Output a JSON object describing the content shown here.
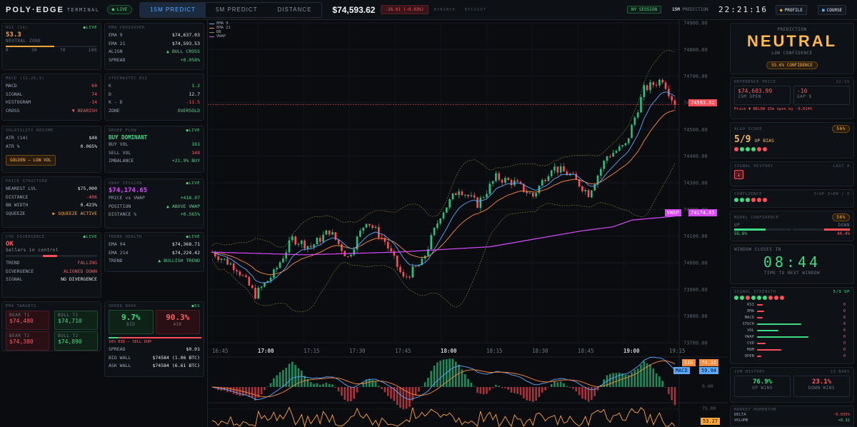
{
  "topbar": {
    "brand": "POLY·EDGE",
    "brand_sub": "TERMINAL",
    "live": "● LIVE",
    "tabs": [
      {
        "label": "15M PREDICT",
        "active": true
      },
      {
        "label": "5M PREDICT",
        "active": false
      },
      {
        "label": "DISTANCE",
        "active": false
      }
    ],
    "price": "$74,593.62",
    "change": "-26.01 (-0.03%)",
    "feed": "BINANCE · BTCUSDT",
    "session": "NY SESSION",
    "prediction_label_a": "15M",
    "prediction_label_b": "PREDICTION",
    "clock": "22:21:16",
    "profile": "PROFILE",
    "course": "COURSE"
  },
  "rsi": {
    "title": "RSI (14)",
    "live": "●LIVE",
    "value": "53.3",
    "zone": "NEUTRAL ZONE",
    "fill": 0.533,
    "ticks": [
      "0",
      "30",
      "70",
      "100"
    ]
  },
  "ema_cross": {
    "title": "EMA CROSSOVER",
    "rows": [
      {
        "k": "EMA 9",
        "v": "$74,637.03"
      },
      {
        "k": "EMA 21",
        "v": "$74,593.53"
      },
      {
        "k": "ALIGN",
        "v": "▲ BULL CROSS"
      },
      {
        "k": "SPREAD",
        "v": "+0.058%"
      }
    ]
  },
  "macd": {
    "title": "MACD (12,26,9)",
    "rows": [
      {
        "k": "MACD",
        "v": "60"
      },
      {
        "k": "SIGNAL",
        "v": "74"
      },
      {
        "k": "HISTOGRAM",
        "v": "-14"
      },
      {
        "k": "CROSS",
        "v": "▼ BEARISH"
      }
    ]
  },
  "stoch": {
    "title": "STOCHASTIC RSI",
    "rows": [
      {
        "k": "K",
        "v": "1.2"
      },
      {
        "k": "D",
        "v": "12.7"
      },
      {
        "k": "K - D",
        "v": "-11.5"
      },
      {
        "k": "ZONE",
        "v": "OVERSOLD"
      }
    ]
  },
  "volatility": {
    "title": "VOLATILITY REGIME",
    "rows": [
      {
        "k": "ATR (14)",
        "v": "$48"
      },
      {
        "k": "ATR %",
        "v": "0.065%"
      }
    ],
    "badge": "GOLDEN — LOW VOL"
  },
  "order_flow": {
    "title": "ORDER FLOW",
    "live": "●LIVE",
    "headline": "BUY DOMINANT",
    "rows": [
      {
        "k": "BUY VOL",
        "v": "181"
      },
      {
        "k": "SELL VOL",
        "v": "148"
      },
      {
        "k": "IMBALANCE",
        "v": "+21.9% BUY"
      }
    ]
  },
  "price_structure": {
    "title": "PRICE STRUCTURE",
    "rows": [
      {
        "k": "NEAREST LVL",
        "v": "$75,000"
      },
      {
        "k": "DISTANCE",
        "v": "-406"
      },
      {
        "k": "BB WIDTH",
        "v": "0.423%"
      },
      {
        "k": "SQUEEZE",
        "v": "▶ SQUEEZE ACTIVE"
      }
    ]
  },
  "vwap_session": {
    "title": "VWAP SESSION",
    "live": "●LIVE",
    "headline": "$74,174.65",
    "rows": [
      {
        "k": "PRICE vs VWAP",
        "v": "+418.97"
      },
      {
        "k": "POSITION",
        "v": "▲ ABOVE VWAP"
      },
      {
        "k": "DISTANCE %",
        "v": "+0.565%"
      }
    ]
  },
  "cvd": {
    "title": "CVD DIVERGENCE",
    "live": "●LIVE",
    "headline": "OK",
    "sub": "Sellers in control",
    "rows": [
      {
        "k": "TREND",
        "v": "FALLING"
      },
      {
        "k": "DIVERGENCE",
        "v": "ALIGNED DOWN"
      },
      {
        "k": "SIGNAL",
        "v": "NO DIVERGENCE"
      }
    ]
  },
  "trend_health": {
    "title": "TREND HEALTH",
    "live": "●LIVE",
    "rows": [
      {
        "k": "EMA 94",
        "v": "$74,368.71"
      },
      {
        "k": "EMA 214",
        "v": "$74,224.42"
      },
      {
        "k": "TREND",
        "v": "▲ BULLISH TREND"
      }
    ]
  },
  "ema_targets": {
    "title": "EMA TARGETS",
    "items": [
      {
        "k": "BEAR T1",
        "v": "$74,480",
        "side": "bear"
      },
      {
        "k": "BULL T1",
        "v": "$74,710",
        "side": "bull"
      },
      {
        "k": "BEAR T2",
        "v": "$74,380",
        "side": "bear"
      },
      {
        "k": "BULL T2",
        "v": "$74,890",
        "side": "bull"
      }
    ]
  },
  "order_book": {
    "title": "ORDER BOOK",
    "live": "●5S",
    "bid_pct": "9.7%",
    "bid_lbl": "BID",
    "ask_pct": "90.3%",
    "ask_lbl": "ASK",
    "bid_fraction": 0.097,
    "summary": "10% BID — SELL DOM",
    "rows": [
      {
        "k": "SPREAD",
        "v": "$0.01"
      },
      {
        "k": "BID WALL",
        "v": "$74584 (1.06 BTC)"
      },
      {
        "k": "ASK WALL",
        "v": "$74584 (6.61 BTC)"
      }
    ]
  },
  "chart": {
    "legend": [
      {
        "name": "EMA 9",
        "color": "#5aa9ff"
      },
      {
        "name": "EMA 21",
        "color": "#ff8a3a"
      },
      {
        "name": "BB",
        "color": "#8f8a3a"
      },
      {
        "name": "VWAP",
        "color": "#d84bff"
      }
    ],
    "price_label": "74593.62",
    "vwap_tag": "VWAP",
    "vwap_label": "74174.65",
    "y_ticks": [
      "74900.00",
      "74800.00",
      "74700.00",
      "74600.00",
      "74500.00",
      "74400.00",
      "74300.00",
      "74200.00",
      "74100.00",
      "74000.00",
      "73900.00",
      "73800.00",
      "73700.00"
    ],
    "x_ticks": [
      {
        "t": "16:45",
        "bold": false
      },
      {
        "t": "17:00",
        "bold": true
      },
      {
        "t": "17:15",
        "bold": false
      },
      {
        "t": "17:30",
        "bold": false
      },
      {
        "t": "17:45",
        "bold": false
      },
      {
        "t": "18:00",
        "bold": true
      },
      {
        "t": "18:15",
        "bold": false
      },
      {
        "t": "18:30",
        "bold": false
      },
      {
        "t": "18:45",
        "bold": false
      },
      {
        "t": "19:00",
        "bold": true
      },
      {
        "t": "19:15",
        "bold": false
      }
    ],
    "macd_sig_tag": "SIG",
    "macd_sig_val": "74.35",
    "macd_tag": "MACD",
    "macd_val": "59.94",
    "macd_zero": "0.00",
    "rsi_hi": "75.00",
    "rsi_val": "53.27"
  },
  "chart_data": {
    "type": "candlestick",
    "ylim": [
      73700,
      74900
    ],
    "close_points": [
      [
        0,
        74040
      ],
      [
        8,
        73980
      ],
      [
        14,
        73880
      ],
      [
        20,
        73960
      ],
      [
        26,
        74090
      ],
      [
        32,
        74060
      ],
      [
        38,
        74120
      ],
      [
        44,
        74020
      ],
      [
        50,
        74160
      ],
      [
        56,
        74080
      ],
      [
        62,
        73940
      ],
      [
        68,
        74000
      ],
      [
        74,
        74180
      ],
      [
        80,
        74280
      ],
      [
        86,
        74220
      ],
      [
        92,
        74320
      ],
      [
        98,
        74300
      ],
      [
        104,
        74250
      ],
      [
        110,
        74360
      ],
      [
        116,
        74330
      ],
      [
        122,
        74260
      ],
      [
        128,
        74400
      ],
      [
        134,
        74440
      ],
      [
        140,
        74650
      ],
      [
        146,
        74690
      ],
      [
        150,
        74593.62
      ]
    ],
    "vwap_points": [
      [
        0,
        74040
      ],
      [
        30,
        74030
      ],
      [
        60,
        74040
      ],
      [
        90,
        74060
      ],
      [
        120,
        74120
      ],
      [
        130,
        74135
      ],
      [
        136,
        74160
      ],
      [
        150,
        74174.65
      ]
    ]
  },
  "prediction": {
    "title": "PREDICTION",
    "value": "NEUTRAL",
    "confidence_lbl": "LOW CONFIDENCE",
    "confidence": "55.6% CONFIDENCE"
  },
  "reference": {
    "title": "REFERENCE PRICE",
    "time": "22:15",
    "open": "$74,603.99",
    "open_lbl": "15M OPEN",
    "gap": "-10",
    "gap_lbl": "GAP $",
    "note": "Price ▼ BELOW 15m open by -0.014%"
  },
  "algo": {
    "title": "ALGO SCORE",
    "pct": "56%",
    "score": "5/9",
    "bias": "UP BIAS",
    "dots": [
      "#ff4d5a",
      "#3ddc84",
      "#3ddc84",
      "#3ddc84",
      "#ff4d5a",
      "#ff4d5a"
    ]
  },
  "signal_history": {
    "title": "SIGNAL HISTORY",
    "right": "LAST 8",
    "arrow": "↓"
  },
  "confluence": {
    "title": "CONFLUENCE",
    "right": "3>UP 3>DN / 6",
    "dots": [
      "#3ddc84",
      "#3ddc84",
      "#3ddc84",
      "#ff4d5a",
      "#ff4d5a",
      "#ff4d5a"
    ]
  },
  "model_conf": {
    "title": "MODEL CONFIDENCE",
    "pct": "56%",
    "up_lbl": "UP",
    "down_lbl": "DOWN",
    "up": "55.6%",
    "down": "44.4%",
    "up_fraction": 0.556,
    "down_fraction": 0.444
  },
  "window": {
    "title": "WINDOW CLOSES IN",
    "time": "08:44",
    "sub": "TIME TO NEXT WINDOW"
  },
  "signal_strength": {
    "title": "SIGNAL STRENGTH",
    "right": "5/9 UP",
    "dots": [
      "#3ddc84",
      "#3ddc84",
      "#ff4d5a",
      "#3ddc84",
      "#3ddc84",
      "#3ddc84",
      "#ff4d5a",
      "#ff4d5a",
      "#ff4d5a"
    ],
    "rows": [
      {
        "k": "RSI",
        "v": "0",
        "level": 0.08,
        "color": "#ff4d5a"
      },
      {
        "k": "EMA",
        "v": "0",
        "level": 0.1,
        "color": "#ff4d5a"
      },
      {
        "k": "MACD",
        "v": "0",
        "level": 0.08,
        "color": "#ff4d5a"
      },
      {
        "k": "STOCH",
        "v": "0",
        "level": 0.62,
        "color": "#3ddc84"
      },
      {
        "k": "VOL",
        "v": "0",
        "level": 0.3,
        "color": "#3ddc84"
      },
      {
        "k": "VWAP",
        "v": "0",
        "level": 0.72,
        "color": "#3ddc84"
      },
      {
        "k": "CVD",
        "v": "0",
        "level": 0.12,
        "color": "#ff4d5a"
      },
      {
        "k": "MOM",
        "v": "0",
        "level": 0.34,
        "color": "#ff4d5a"
      },
      {
        "k": "OPEN",
        "v": "0",
        "level": 0.06,
        "color": "#ff4d5a"
      }
    ]
  },
  "history": {
    "title": "15M HISTORY",
    "right": "13 BARS",
    "up": "76.9%",
    "up_lbl": "UP WINS",
    "down": "23.1%",
    "down_lbl": "DOWN WINS"
  },
  "momentum": {
    "title": "MARKET MOMENTUM",
    "rows": [
      {
        "k": "DELTA",
        "v": "-0.035%"
      },
      {
        "k": "VOLUME",
        "v": "+0.32"
      }
    ]
  }
}
